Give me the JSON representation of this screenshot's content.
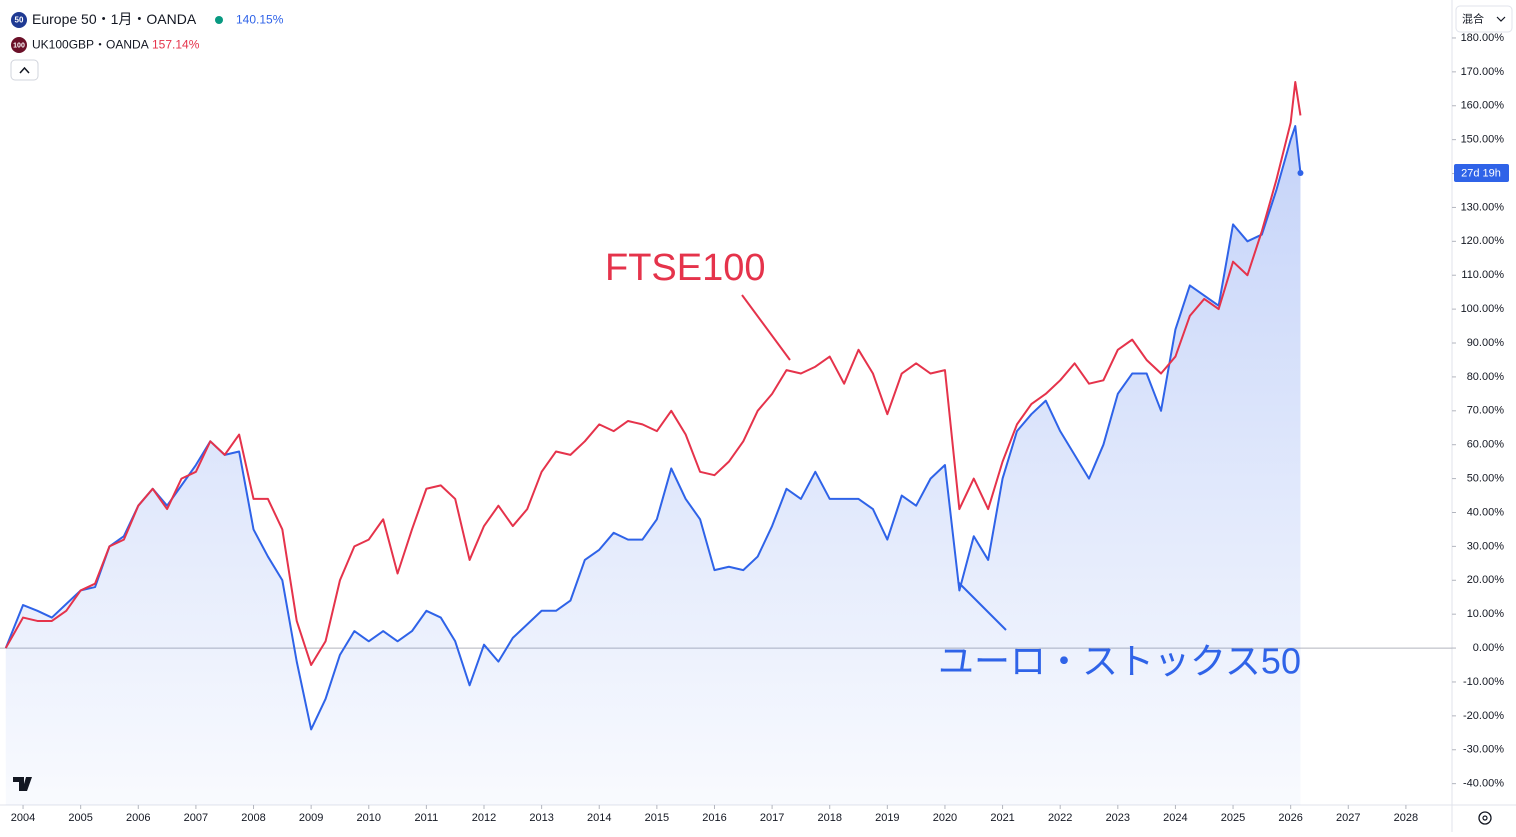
{
  "chart_data": {
    "type": "line",
    "x": [
      2003.7,
      2004,
      2004.25,
      2004.5,
      2004.75,
      2005,
      2005.25,
      2005.5,
      2005.75,
      2006,
      2006.25,
      2006.5,
      2006.75,
      2007,
      2007.25,
      2007.5,
      2007.75,
      2008,
      2008.25,
      2008.5,
      2008.75,
      2009,
      2009.25,
      2009.5,
      2009.75,
      2010,
      2010.25,
      2010.5,
      2010.75,
      2011,
      2011.25,
      2011.5,
      2011.75,
      2012,
      2012.25,
      2012.5,
      2012.75,
      2013,
      2013.25,
      2013.5,
      2013.75,
      2014,
      2014.25,
      2014.5,
      2014.75,
      2015,
      2015.25,
      2015.5,
      2015.75,
      2016,
      2016.25,
      2016.5,
      2016.75,
      2017,
      2017.25,
      2017.5,
      2017.75,
      2018,
      2018.25,
      2018.5,
      2018.75,
      2019,
      2019.25,
      2019.5,
      2019.75,
      2020,
      2020.25,
      2020.5,
      2020.75,
      2021,
      2021.25,
      2021.5,
      2021.75,
      2022,
      2022.25,
      2022.5,
      2022.75,
      2023,
      2023.25,
      2023.5,
      2023.75,
      2024,
      2024.25,
      2024.5,
      2024.75,
      2025,
      2025.25,
      2025.5,
      2025.75,
      2026,
      2026.08,
      2026.17
    ],
    "series": [
      {
        "name": "Europe 50・1月・OANDA",
        "legend_icon": "50",
        "icon_color": "#1f3a93",
        "color": "#2f63e8",
        "last_value_label": "140.15%",
        "values": [
          0,
          12.7,
          11,
          9,
          13,
          17,
          18,
          30,
          33,
          42,
          47,
          42,
          48,
          54,
          61,
          57,
          58,
          35,
          27,
          20,
          -4,
          -24,
          -15,
          -2,
          5,
          2,
          5,
          2,
          5,
          11,
          9,
          2,
          -11,
          1,
          -4,
          3,
          7,
          11,
          11,
          14,
          26,
          29,
          34,
          32,
          32,
          38,
          53,
          44,
          38,
          23,
          24,
          23,
          27,
          36,
          47,
          44,
          52,
          44,
          44,
          44,
          41,
          32,
          45,
          42,
          50,
          54,
          17,
          33,
          26,
          50,
          64,
          69,
          73,
          64,
          57,
          50,
          60,
          75,
          81,
          81,
          70,
          94,
          107,
          104,
          101,
          125,
          120,
          122,
          135,
          150,
          154,
          140.15
        ]
      },
      {
        "name": "UK100GBP・OANDA",
        "legend_icon": "100",
        "icon_color": "#6b1028",
        "color": "#e5334b",
        "last_value_label": "157.14%",
        "values": [
          0,
          9,
          8,
          8,
          11,
          17,
          19,
          30,
          32,
          42,
          47,
          41,
          50,
          52,
          61,
          57,
          63,
          44,
          44,
          35,
          8,
          -5,
          2,
          20,
          30,
          32,
          38,
          22,
          35,
          47,
          48,
          44,
          26,
          36,
          42,
          36,
          41,
          52,
          58,
          57,
          61,
          66,
          64,
          67,
          66,
          64,
          70,
          63,
          52,
          51,
          55,
          61,
          70,
          75,
          82,
          81,
          83,
          86,
          78,
          88,
          81,
          69,
          81,
          84,
          81,
          82,
          41,
          50,
          41,
          55,
          66,
          72,
          75,
          79,
          84,
          78,
          79,
          88,
          91,
          85,
          81,
          86,
          98,
          103,
          100,
          114,
          110,
          123,
          138,
          155,
          167,
          157.14
        ]
      }
    ],
    "xlim": [
      2003.6,
      2028.8
    ],
    "xticks": [
      2004,
      2005,
      2006,
      2007,
      2008,
      2009,
      2010,
      2011,
      2012,
      2013,
      2014,
      2015,
      2016,
      2017,
      2018,
      2019,
      2020,
      2021,
      2022,
      2023,
      2024,
      2025,
      2026,
      2027,
      2028
    ],
    "ylim": [
      -46.3,
      191.2
    ],
    "yticks": [
      {
        "value": 180,
        "label": "180.00%"
      },
      {
        "value": 170,
        "label": "170.00%"
      },
      {
        "value": 160,
        "label": "160.00%"
      },
      {
        "value": 150,
        "label": "150.00%"
      },
      {
        "value": 140,
        "label": "140.00%"
      },
      {
        "value": 130,
        "label": "130.00%"
      },
      {
        "value": 120,
        "label": "120.00%"
      },
      {
        "value": 110,
        "label": "110.00%"
      },
      {
        "value": 100,
        "label": "100.00%"
      },
      {
        "value": 90,
        "label": "90.00%"
      },
      {
        "value": 80,
        "label": "80.00%"
      },
      {
        "value": 70,
        "label": "70.00%"
      },
      {
        "value": 60,
        "label": "60.00%"
      },
      {
        "value": 50,
        "label": "50.00%"
      },
      {
        "value": 40,
        "label": "40.00%"
      },
      {
        "value": 30,
        "label": "30.00%"
      },
      {
        "value": 20,
        "label": "20.00%"
      },
      {
        "value": 10,
        "label": "10.00%"
      },
      {
        "value": 0,
        "label": "0.00%"
      },
      {
        "value": -10,
        "label": "-10.00%"
      },
      {
        "value": -20,
        "label": "-20.00%"
      },
      {
        "value": -30,
        "label": "-30.00%"
      },
      {
        "value": -40,
        "label": "-40.00%"
      }
    ],
    "scale_mode": "混合",
    "countdown": "27d 19h",
    "annotations": [
      {
        "text": "FTSE100",
        "color": "#e5334b"
      },
      {
        "text": "ユーロ・ストックス50",
        "color": "#2f63e8"
      }
    ]
  }
}
